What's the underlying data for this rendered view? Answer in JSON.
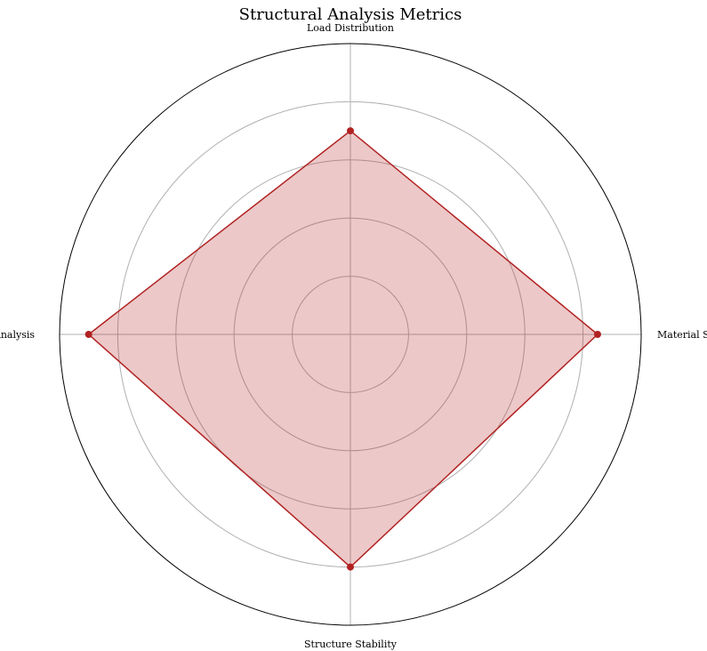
{
  "chart_data": {
    "type": "radar",
    "title": "Structural Analysis Metrics",
    "categories": [
      "Material Strength",
      "Load Distribution",
      "Stress Analysis",
      "Structure Stability"
    ],
    "series": [
      {
        "values": [
          85,
          70,
          90,
          80
        ]
      }
    ],
    "rlim": [
      0,
      100
    ],
    "grid_ticks": [
      20,
      40,
      60,
      80
    ],
    "grid": true,
    "tick_labels_shown": false,
    "colors": {
      "line": "#b22222",
      "fill": "#b22222",
      "grid": "#b0b0b0",
      "frame": "#000000"
    }
  }
}
